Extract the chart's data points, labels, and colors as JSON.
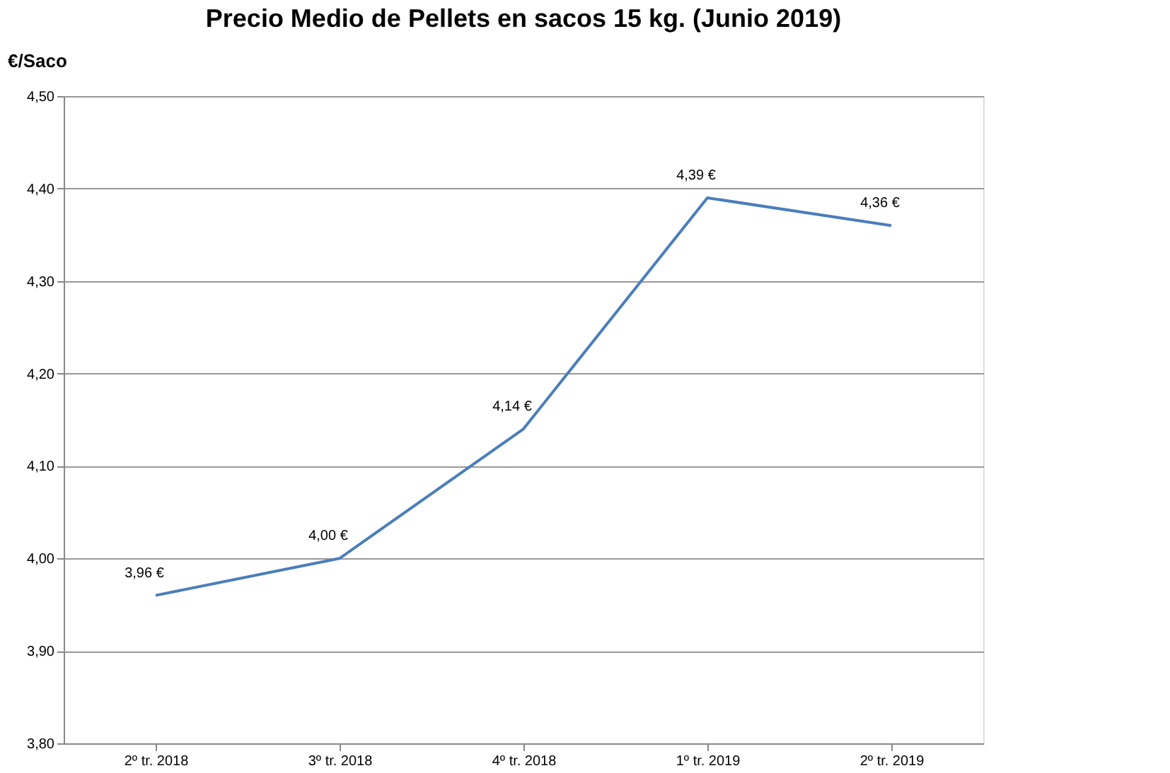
{
  "chart_data": {
    "type": "line",
    "title": "Precio Medio de Pellets en sacos 15 kg. (Junio 2019)",
    "ylabel": "€/Saco",
    "categories": [
      "2º tr. 2018",
      "3º tr. 2018",
      "4º tr. 2018",
      "1º tr. 2019",
      "2º tr. 2019"
    ],
    "series": [
      {
        "color": "#4a7ebb",
        "values": [
          3.96,
          4.0,
          4.14,
          4.39,
          4.36
        ],
        "value_labels": [
          "3,96 €",
          "4,00 €",
          "4,14 €",
          "4,39 €",
          "4,36 €"
        ]
      }
    ],
    "ylim": [
      3.8,
      4.5
    ],
    "yticks": [
      {
        "value": 3.8,
        "label": "3,80"
      },
      {
        "value": 3.9,
        "label": "3,90"
      },
      {
        "value": 4.0,
        "label": "4,00"
      },
      {
        "value": 4.1,
        "label": "4,10"
      },
      {
        "value": 4.2,
        "label": "4,20"
      },
      {
        "value": 4.3,
        "label": "4,30"
      },
      {
        "value": 4.4,
        "label": "4,40"
      },
      {
        "value": 4.5,
        "label": "4,50"
      }
    ],
    "grid": "y",
    "marker": "none",
    "line_style": "solid"
  }
}
